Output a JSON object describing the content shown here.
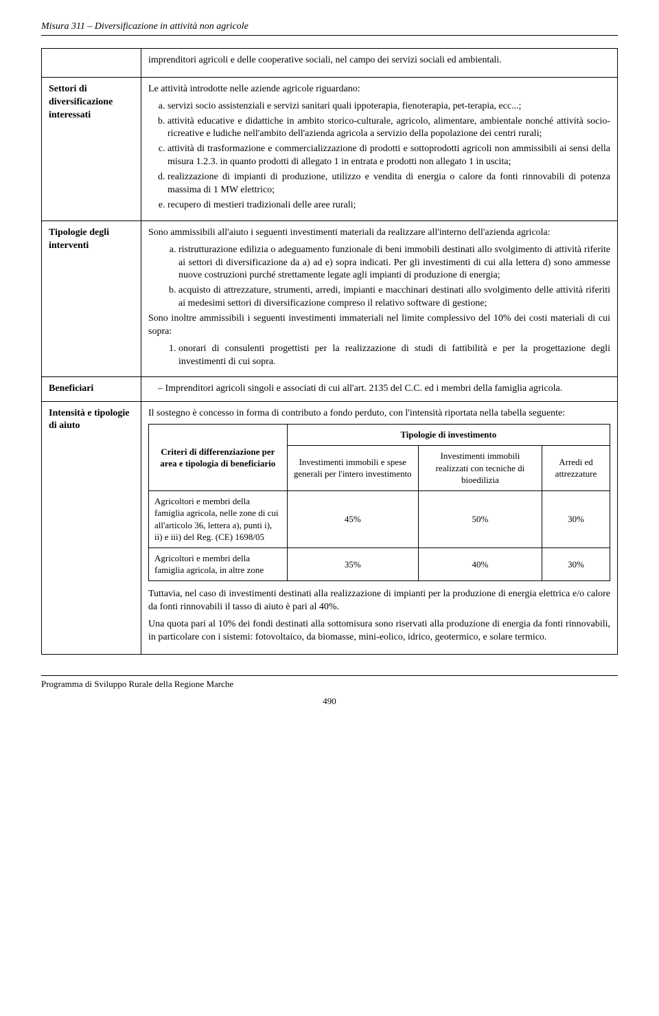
{
  "header": {
    "title": "Misura 311 – Diversificazione in attività non agricole"
  },
  "rows": {
    "intro": {
      "text": "imprenditori agricoli e delle cooperative sociali, nel campo dei servizi sociali ed ambientali."
    },
    "settori": {
      "label": "Settori di diversificazione interessati",
      "lead": "Le attività introdotte nelle aziende agricole riguardano:",
      "items": [
        "servizi socio assistenziali e servizi sanitari quali ippoterapia, fienoterapia, pet-terapia, ecc...;",
        "attività educative e didattiche in ambito storico-culturale, agricolo, alimentare, ambientale nonché attività socio-ricreative e ludiche nell'ambito dell'azienda agricola a servizio della popolazione dei centri rurali;",
        "attività di trasformazione e commercializzazione di prodotti e sottoprodotti agricoli non ammissibili ai sensi della misura 1.2.3. in quanto prodotti di allegato 1 in entrata e prodotti non allegato 1 in uscita;",
        "realizzazione di impianti di produzione, utilizzo e vendita di energia o calore da fonti rinnovabili di potenza massima di 1 MW elettrico;",
        "recupero di mestieri tradizionali delle aree rurali;"
      ]
    },
    "tipologie": {
      "label": "Tipologie degli interventi",
      "lead": "Sono ammissibili all'aiuto i seguenti investimenti materiali da realizzare all'interno dell'azienda agricola:",
      "items": [
        "ristrutturazione edilizia o adeguamento funzionale di beni immobili destinati allo svolgimento di attività riferite ai settori di diversificazione da a) ad e) sopra indicati. Per gli investimenti di cui alla lettera d) sono ammesse nuove costruzioni purché strettamente legate agli impianti di produzione di energia;",
        "acquisto di attrezzature, strumenti, arredi, impianti e macchinari destinati allo svolgimento delle attività riferiti ai medesimi settori di diversificazione compreso il relativo software di gestione;"
      ],
      "mid": "Sono inoltre ammissibili i seguenti investimenti immateriali nel limite complessivo del 10% dei costi materiali di cui sopra:",
      "numitems": [
        "onorari di consulenti progettisti per la realizzazione di studi di fattibilità e per la progettazione degli investimenti di cui sopra."
      ]
    },
    "beneficiari": {
      "label": "Beneficiari",
      "item": "Imprenditori agricoli singoli e associati di cui all'art. 2135 del C.C. ed i membri della famiglia agricola."
    },
    "intensita": {
      "label": "Intensità e tipologie di aiuto",
      "lead": "Il sostegno è concesso in forma di contributo a fondo perduto, con l'intensità riportata nella tabella seguente:",
      "table": {
        "hdr_left": "Criteri di differenziazione per area e tipologia di beneficiario",
        "hdr_right": "Tipologie di investimento",
        "cols": [
          "Investimenti immobili e spese generali per l'intero investimento",
          "Investimenti immobili realizzati con tecniche di bioedilizia",
          "Arredi ed attrezzature"
        ],
        "r1_label": "Agricoltori e membri della famiglia agricola, nelle zone di cui all'articolo 36, lettera a), punti i), ii) e iii) del Reg. (CE) 1698/05",
        "r1_v": [
          "45%",
          "50%",
          "30%"
        ],
        "r2_label": "Agricoltori e membri della famiglia agricola, in altre zone",
        "r2_v": [
          "35%",
          "40%",
          "30%"
        ]
      },
      "p1": "Tuttavia, nel caso di investimenti destinati alla realizzazione di impianti per la produzione di energia elettrica e/o calore da fonti rinnovabili il tasso di aiuto è pari al 40%.",
      "p2": "Una quota pari al 10% dei fondi destinati alla sottomisura sono riservati alla produzione di energia da fonti rinnovabili, in particolare con i sistemi: fotovoltaico, da biomasse, mini-eolico, idrico, geotermico, e solare termico."
    }
  },
  "footer": {
    "programme": "Programma di Sviluppo Rurale della Regione Marche",
    "pagenum": "490"
  }
}
